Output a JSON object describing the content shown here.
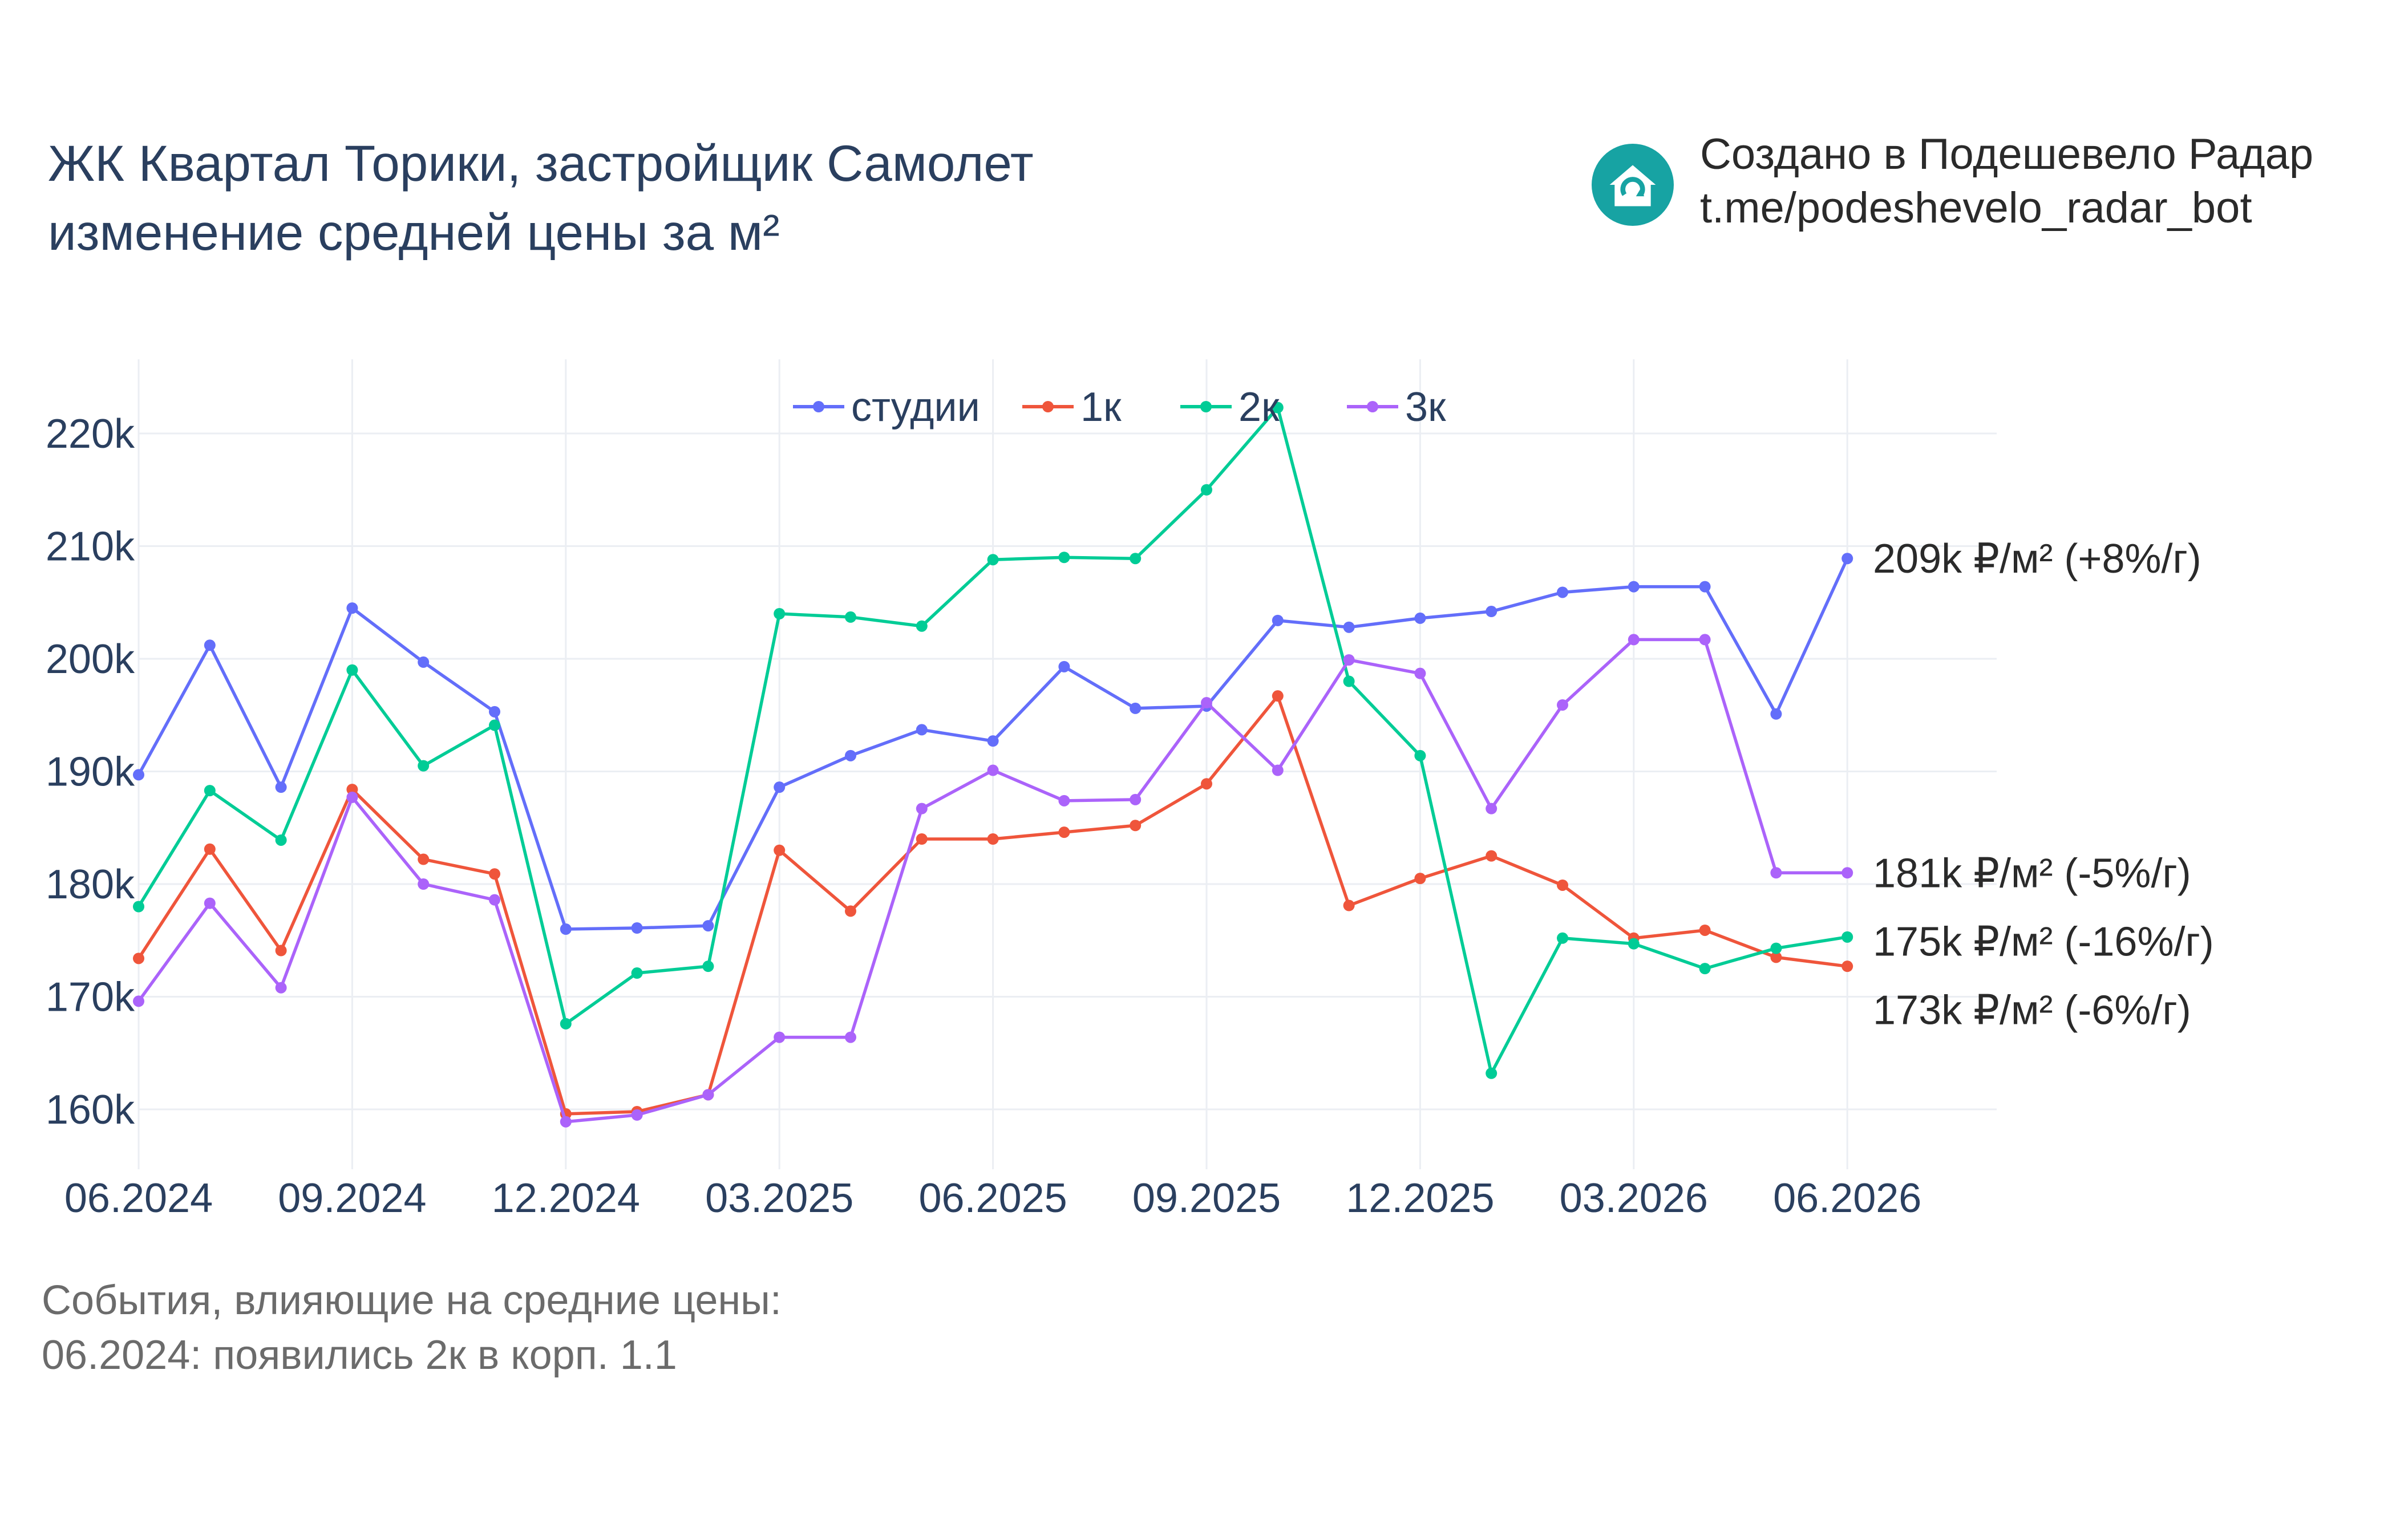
{
  "header": {
    "title_line1": "ЖК Квартал Торики, застройщик Самолет",
    "title_line2": "изменение средней цены за м²"
  },
  "brand": {
    "line1": "Создано в Подешевело Радар",
    "line2": "t.me/podeshevelo_radar_bot",
    "logo_icon": "house-refresh-icon",
    "logo_color": "#17a3a3"
  },
  "events": {
    "heading": "События, влияющие на средние цены:",
    "items": [
      "06.2024: появились 2к в корп. 1.1"
    ]
  },
  "chart_data": {
    "type": "line",
    "x": [
      "06.2024",
      "07.2024",
      "08.2024",
      "09.2024",
      "10.2024",
      "11.2024",
      "12.2024",
      "01.2025",
      "02.2025",
      "03.2025",
      "04.2025",
      "05.2025",
      "06.2025",
      "07.2025",
      "08.2025",
      "09.2025",
      "10.2025",
      "11.2025",
      "12.2025",
      "01.2026",
      "02.2026",
      "03.2026",
      "04.2026",
      "05.2026",
      "06.2026"
    ],
    "xticks": [
      "06.2024",
      "09.2024",
      "12.2024",
      "03.2025",
      "06.2025",
      "09.2025",
      "12.2025",
      "03.2026",
      "06.2026"
    ],
    "ylim": [
      155000,
      227000
    ],
    "yticks": [
      160000,
      170000,
      180000,
      190000,
      200000,
      210000,
      220000
    ],
    "ytick_labels": [
      "160k",
      "170k",
      "180k",
      "190k",
      "200k",
      "210k",
      "220k"
    ],
    "grid": true,
    "legend_position": "top-center",
    "series": [
      {
        "name": "студии",
        "color": "#636efa",
        "values": [
          189700,
          201200,
          188600,
          204500,
          199700,
          195300,
          176000,
          176100,
          176300,
          188600,
          191400,
          193700,
          192700,
          199300,
          195600,
          195800,
          203400,
          202800,
          203600,
          204200,
          205900,
          206400,
          206400,
          195100,
          208900
        ],
        "end_label": "209k ₽/м² (+8%/г)"
      },
      {
        "name": "1к",
        "color": "#ef553b",
        "values": [
          173400,
          183100,
          174100,
          188400,
          182200,
          180900,
          159600,
          159800,
          161300,
          183000,
          177600,
          184000,
          184000,
          184600,
          185200,
          188900,
          196700,
          178100,
          180500,
          182500,
          179900,
          175200,
          175900,
          173500,
          172700
        ],
        "end_label": "173k ₽/м² (-6%/г)"
      },
      {
        "name": "2к",
        "color": "#00cc96",
        "values": [
          178000,
          188300,
          183900,
          199000,
          190500,
          194100,
          167600,
          172100,
          172700,
          204000,
          203700,
          202900,
          208800,
          209000,
          208900,
          215000,
          222300,
          198000,
          191400,
          163200,
          175200,
          174700,
          172500,
          174300,
          175300
        ],
        "end_label": "175k ₽/м² (-16%/г)"
      },
      {
        "name": "3к",
        "color": "#ab63fa",
        "values": [
          169600,
          178300,
          170800,
          187700,
          180000,
          178600,
          158900,
          159500,
          161300,
          166400,
          166400,
          186700,
          190100,
          187400,
          187500,
          196100,
          190100,
          199900,
          198700,
          186700,
          195900,
          201700,
          201700,
          181000,
          181000
        ],
        "end_label": "181k ₽/м² (-5%/г)"
      }
    ]
  }
}
